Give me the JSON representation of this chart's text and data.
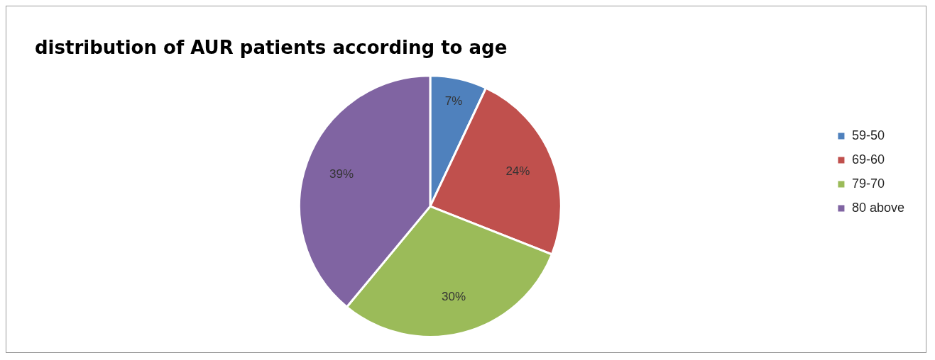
{
  "chart_data": {
    "type": "pie",
    "title": "distribution of AUR patients according to age",
    "categories": [
      "59-50",
      "69-60",
      "79-70",
      "80 above"
    ],
    "values": [
      7,
      24,
      30,
      39
    ],
    "colors": [
      "#4f81bd",
      "#c0504d",
      "#9bbb59",
      "#8064a2"
    ],
    "value_labels": [
      "7%",
      "24%",
      "30%",
      "39%"
    ],
    "legend": "right"
  }
}
